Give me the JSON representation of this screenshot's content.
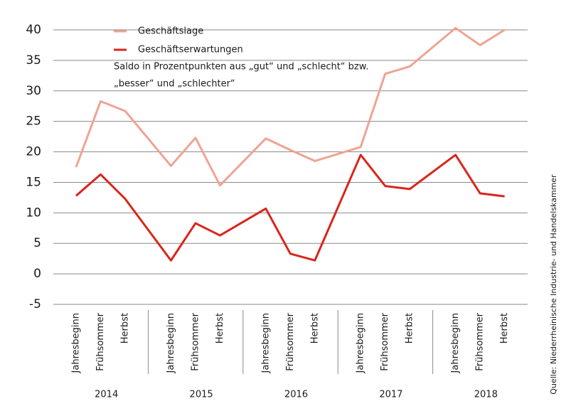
{
  "chart_data": {
    "type": "line",
    "categories": [
      "Jahresbeginn",
      "Frühsommer",
      "Herbst",
      "Jahresbeginn",
      "Frühsommer",
      "Herbst",
      "Jahresbeginn",
      "Frühsommer",
      "Herbst",
      "Jahresbeginn",
      "Frühsommer",
      "Herbst",
      "Jahresbeginn",
      "Frühsommer",
      "Herbst"
    ],
    "groups": [
      "2014",
      "2015",
      "2016",
      "2017",
      "2018"
    ],
    "series": [
      {
        "name": "Geschäftslage",
        "color": "#f0a393",
        "values": [
          17.5,
          28.3,
          26.7,
          17.7,
          22.3,
          14.5,
          22.2,
          20.3,
          18.5,
          20.8,
          32.8,
          34,
          40.3,
          37.5,
          40
        ]
      },
      {
        "name": "Geschäftserwartungen",
        "color": "#d9261c",
        "values": [
          12.8,
          16.3,
          12.3,
          2.2,
          8.3,
          6.3,
          10.7,
          3.3,
          2.2,
          19.5,
          14.4,
          13.9,
          19.5,
          13.2,
          12.7
        ]
      }
    ],
    "annotation": [
      "Saldo in Prozentpunkten aus „gut“ und „schlecht“ bzw.",
      "„besser“ und „schlechter“"
    ],
    "source": "Quelle: Niederrheinische Industrie- und Handelskammer",
    "ylim": [
      -5,
      40
    ],
    "yticks": [
      -5,
      0,
      5,
      10,
      15,
      20,
      25,
      30,
      35,
      40
    ],
    "grid": true,
    "legend": "top-left"
  }
}
